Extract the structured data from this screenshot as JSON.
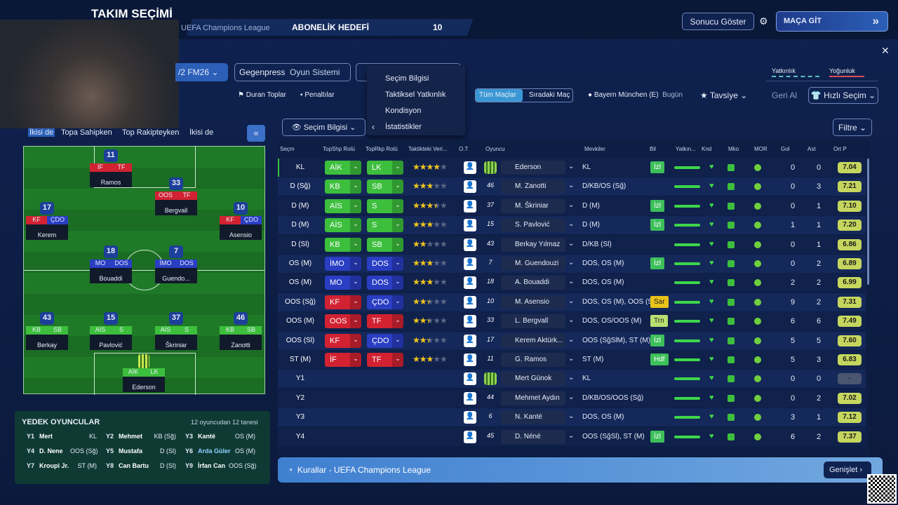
{
  "header": {
    "title": "TAKIM SEÇİMİ",
    "competition": "UEFA Champions League",
    "goal_label": "ABONELİK HEDEFİ",
    "goal_value": "10",
    "show_result": "Sonucu Göster",
    "go_match": "MAÇA GİT"
  },
  "tactics": {
    "formation": "/2 FM26",
    "style": "Gegenpress",
    "system": "Oyun Sistemi",
    "set_pieces": "Duran Toplar",
    "penalties": "Penaltılar",
    "all_matches": "Tüm Maçlar",
    "next_match": "Sıradaki Maç",
    "opponent": "Bayern München (E)",
    "when": "Bugün",
    "advice": "Tavsiye",
    "undo": "Geri Al",
    "quick_pick": "Hızlı Seçim",
    "familiarity": "Yatkınlık",
    "intensity": "Yoğunluk"
  },
  "menu": [
    "Seçim Bilgisi",
    "Taktiksel Yatkınlık",
    "Kondisyon",
    "İstatistikler"
  ],
  "phase_tabs": [
    "İkisi de",
    "Topa Sahipken",
    "Top Rakipteyken",
    "İkisi de"
  ],
  "view": {
    "selector": "Seçim Bilgisi",
    "filter": "Filtre"
  },
  "columns": [
    "Seçm",
    "TopShp Rolü",
    "TopRkp Rolü",
    "Taktikteki Veri...",
    "O.T",
    "Oyuncu",
    "Mevkiler",
    "Bil",
    "Yatkın...",
    "Knd",
    "Mko",
    "MOR",
    "Gol",
    "Ast",
    "Ort P"
  ],
  "rows": [
    {
      "pos": "KL",
      "shp": "AİK",
      "shp_color": "#3dbf3d",
      "rkp": "LK",
      "rkp_color": "#3dbf3d",
      "stars": 4,
      "number": null,
      "name": "Ederson",
      "positions": "KL",
      "bil": "İzl",
      "gol": 0,
      "ast": 0,
      "rating": "7.04"
    },
    {
      "pos": "D (Sğ)",
      "shp": "KB",
      "shp_color": "#3dbf3d",
      "rkp": "SB",
      "rkp_color": "#3dbf3d",
      "stars": 3,
      "number": "46",
      "name": "M. Zanotti",
      "positions": "D/KB/OS (Sğ)",
      "bil": null,
      "gol": 0,
      "ast": 3,
      "rating": "7.21"
    },
    {
      "pos": "D (M)",
      "shp": "AİS",
      "shp_color": "#3dbf3d",
      "rkp": "S",
      "rkp_color": "#3dbf3d",
      "stars": 3.5,
      "number": "37",
      "name": "M. Škriniar",
      "positions": "D (M)",
      "bil": "İzl",
      "gol": 0,
      "ast": 1,
      "rating": "7.10"
    },
    {
      "pos": "D (M)",
      "shp": "AİS",
      "shp_color": "#3dbf3d",
      "rkp": "S",
      "rkp_color": "#3dbf3d",
      "stars": 3,
      "number": "15",
      "name": "S. Pavlović",
      "positions": "D (M)",
      "bil": "İzl",
      "gol": 1,
      "ast": 1,
      "rating": "7.20"
    },
    {
      "pos": "D (Sl)",
      "shp": "KB",
      "shp_color": "#3dbf3d",
      "rkp": "SB",
      "rkp_color": "#3dbf3d",
      "stars": 2,
      "number": "43",
      "name": "Berkay Yılmaz",
      "positions": "D/KB (Sl)",
      "bil": null,
      "gol": 0,
      "ast": 1,
      "rating": "6.86"
    },
    {
      "pos": "OS (M)",
      "shp": "İMO",
      "shp_color": "#2a3ec4",
      "rkp": "DOS",
      "rkp_color": "#2a3ec4",
      "stars": 3,
      "number": "7",
      "name": "M. Guendouzi",
      "positions": "DOS, OS (M)",
      "bil": "İzl",
      "gol": 0,
      "ast": 2,
      "rating": "6.89"
    },
    {
      "pos": "OS (M)",
      "shp": "MO",
      "shp_color": "#2a3ec4",
      "rkp": "DOS",
      "rkp_color": "#2a3ec4",
      "stars": 3,
      "number": "18",
      "name": "A. Bouaddi",
      "positions": "DOS, OS (M)",
      "bil": null,
      "gol": 2,
      "ast": 2,
      "rating": "6.99"
    },
    {
      "pos": "OOS (Sğ)",
      "shp": "KF",
      "shp_color": "#d22232",
      "rkp": "ÇDO",
      "rkp_color": "#2a3ec4",
      "stars": 2.5,
      "number": "10",
      "name": "M. Asensio",
      "positions": "DOS, OS (M), OOS (S...",
      "bil": "Sar",
      "gol": 9,
      "ast": 2,
      "rating": "7.31"
    },
    {
      "pos": "OOS (M)",
      "shp": "OOS",
      "shp_color": "#d22232",
      "rkp": "TF",
      "rkp_color": "#d22232",
      "stars": 2.5,
      "number": "33",
      "name": "L. Bergvall",
      "positions": "DOS, OS/OOS (M)",
      "bil": "Trn",
      "gol": 6,
      "ast": 6,
      "rating": "7.49"
    },
    {
      "pos": "OOS (Sl)",
      "shp": "KF",
      "shp_color": "#d22232",
      "rkp": "ÇDO",
      "rkp_color": "#2a3ec4",
      "stars": 2.5,
      "number": "17",
      "name": "Kerem Aktürk...",
      "positions": "OOS (SğSlM), ST (M)",
      "bil": "İzl",
      "gol": 5,
      "ast": 5,
      "rating": "7.60"
    },
    {
      "pos": "ST (M)",
      "shp": "İF",
      "shp_color": "#d22232",
      "rkp": "TF",
      "rkp_color": "#d22232",
      "stars": 3,
      "number": "11",
      "name": "G. Ramos",
      "positions": "ST (M)",
      "bil": "Hdf",
      "gol": 5,
      "ast": 3,
      "rating": "6.83"
    },
    {
      "pos": "Y1",
      "shp": null,
      "rkp": null,
      "stars": null,
      "number": null,
      "name": "Mert Günok",
      "positions": "KL",
      "bil": null,
      "gol": 0,
      "ast": 0,
      "rating": "-"
    },
    {
      "pos": "Y2",
      "shp": null,
      "rkp": null,
      "stars": null,
      "number": "44",
      "name": "Mehmet Aydın",
      "positions": "D/KB/OS/OOS (Sğ)",
      "bil": null,
      "gol": 0,
      "ast": 2,
      "rating": "7.02"
    },
    {
      "pos": "Y3",
      "shp": null,
      "rkp": null,
      "stars": null,
      "number": "6",
      "name": "N. Kanté",
      "positions": "DOS, OS (M)",
      "bil": null,
      "gol": 3,
      "ast": 1,
      "rating": "7.12"
    },
    {
      "pos": "Y4",
      "shp": null,
      "rkp": null,
      "stars": null,
      "number": "45",
      "name": "D. Néné",
      "positions": "OOS (SğSl), ST (M)",
      "bil": "İzl",
      "gol": 6,
      "ast": 2,
      "rating": "7.37"
    }
  ],
  "pitch": [
    {
      "number": "11",
      "shp": "İF",
      "rkp": "TF",
      "name": "Ramos",
      "shp_color": "#d22232",
      "rkp_color": "#d22232"
    },
    {
      "number": "33",
      "shp": "OOS",
      "rkp": "TF",
      "name": "Bergvall",
      "shp_color": "#d22232",
      "rkp_color": "#d22232"
    },
    {
      "number": "17",
      "shp": "KF",
      "rkp": "ÇDO",
      "name": "Kerem",
      "shp_color": "#d22232",
      "rkp_color": "#2a3ec4"
    },
    {
      "number": "10",
      "shp": "KF",
      "rkp": "ÇDO",
      "name": "Asensio",
      "shp_color": "#d22232",
      "rkp_color": "#2a3ec4"
    },
    {
      "number": "18",
      "shp": "MO",
      "rkp": "DOS",
      "name": "Bouaddi",
      "shp_color": "#2a3ec4",
      "rkp_color": "#2a3ec4"
    },
    {
      "number": "7",
      "shp": "İMO",
      "rkp": "DOS",
      "name": "Guendo...",
      "shp_color": "#2a3ec4",
      "rkp_color": "#2a3ec4"
    },
    {
      "number": "43",
      "shp": "KB",
      "rkp": "SB",
      "name": "Berkay",
      "shp_color": "#3dbf3d",
      "rkp_color": "#3dbf3d"
    },
    {
      "number": "15",
      "shp": "AİS",
      "rkp": "S",
      "name": "Pavlović",
      "shp_color": "#3dbf3d",
      "rkp_color": "#3dbf3d"
    },
    {
      "number": "37",
      "shp": "AİS",
      "rkp": "S",
      "name": "Škriniar",
      "shp_color": "#3dbf3d",
      "rkp_color": "#3dbf3d"
    },
    {
      "number": "46",
      "shp": "KB",
      "rkp": "SB",
      "name": "Zanotti",
      "shp_color": "#3dbf3d",
      "rkp_color": "#3dbf3d"
    },
    {
      "number": null,
      "shp": "AİK",
      "rkp": "LK",
      "name": "Ederson",
      "shp_color": "#3dbf3d",
      "rkp_color": "#3dbf3d"
    }
  ],
  "subs": {
    "title": "YEDEK OYUNCULAR",
    "count": "12 oyuncudan 12 tanesi",
    "players": [
      {
        "slot": "Y1",
        "name": "Mert",
        "pos": "KL"
      },
      {
        "slot": "Y2",
        "name": "Mehmet",
        "pos": "KB (Sğ)"
      },
      {
        "slot": "Y3",
        "name": "Kanté",
        "pos": "OS (M)"
      },
      {
        "slot": "Y4",
        "name": "D. Nene",
        "pos": "OOS (Sğ)"
      },
      {
        "slot": "Y5",
        "name": "Mustafa",
        "pos": "D (Sl)"
      },
      {
        "slot": "Y6",
        "name": "Arda Güler",
        "pos": "OS (M)"
      },
      {
        "slot": "Y7",
        "name": "Kroupi Jr.",
        "pos": "ST (M)"
      },
      {
        "slot": "Y8",
        "name": "Can Bartu",
        "pos": "D (Sl)"
      },
      {
        "slot": "Y9",
        "name": "İrfan Can",
        "pos": "OOS (Sğ)"
      }
    ]
  },
  "footer": {
    "rules": "Kurallar - UEFA Champions League",
    "expand": "Genişlet"
  }
}
